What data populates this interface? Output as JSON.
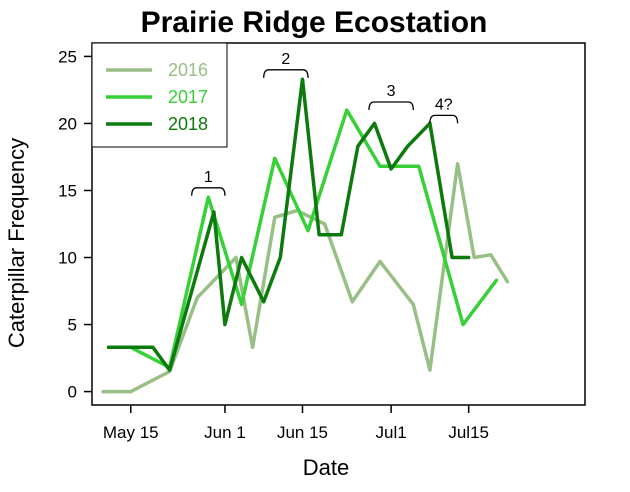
{
  "chart_data": {
    "type": "line",
    "title": "Prairie Ridge Ecostation",
    "xlabel": "Date",
    "ylabel": "Caterpillar Frequency",
    "xlim": [
      128,
      217
    ],
    "ylim": [
      -1,
      26
    ],
    "xticks": [
      {
        "label": "May 15",
        "value": 135
      },
      {
        "label": "Jun 1",
        "value": 152
      },
      {
        "label": "Jun 15",
        "value": 166
      },
      {
        "label": "Jul1",
        "value": 182
      },
      {
        "label": "Jul15",
        "value": 196
      }
    ],
    "yticks": [
      0,
      5,
      10,
      15,
      20,
      25
    ],
    "grid": false,
    "legend_position": "top-left",
    "series": [
      {
        "name": "2016",
        "color": "#98bf86",
        "x": [
          130,
          135,
          142,
          147,
          154,
          157,
          161,
          165,
          170,
          175,
          180,
          186,
          189,
          194,
          197,
          200,
          203
        ],
        "y": [
          0,
          0,
          1.5,
          7,
          10,
          3.3,
          13,
          13.5,
          12.5,
          6.7,
          9.7,
          6.5,
          1.6,
          17,
          10,
          10.2,
          8.2
        ]
      },
      {
        "name": "2017",
        "color": "#37d137",
        "x": [
          131,
          135,
          142,
          149,
          155,
          161,
          167,
          174,
          180,
          187,
          195,
          201
        ],
        "y": [
          3.3,
          3.3,
          1.8,
          14.5,
          6.5,
          17.4,
          12,
          21,
          16.8,
          16.8,
          5,
          8.3
        ]
      },
      {
        "name": "2018",
        "color": "#0c7a0c",
        "x": [
          131,
          135,
          139,
          142,
          150,
          152,
          155,
          159,
          162,
          166,
          169,
          173,
          176,
          179,
          182,
          185,
          189,
          193,
          196
        ],
        "y": [
          3.3,
          3.3,
          3.3,
          1.6,
          13.4,
          5,
          10,
          6.7,
          10,
          23.3,
          11.7,
          11.7,
          18.3,
          20,
          16.6,
          18.3,
          20,
          10,
          10
        ]
      }
    ],
    "annotations": [
      {
        "text": "1",
        "x_start": 146,
        "x_end": 152,
        "y": 15.2
      },
      {
        "text": "2",
        "x_start": 159,
        "x_end": 167,
        "y": 24
      },
      {
        "text": "3",
        "x_start": 178,
        "x_end": 186,
        "y": 21.6
      },
      {
        "text": "4?",
        "x_start": 189,
        "x_end": 194,
        "y": 20.6
      }
    ]
  }
}
